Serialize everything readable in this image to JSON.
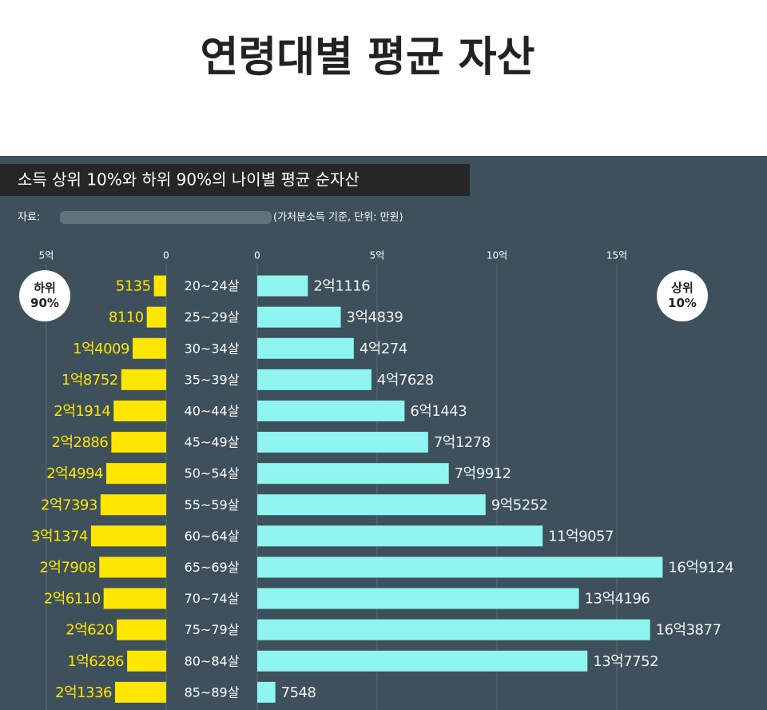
{
  "chart_data": {
    "type": "butterfly_bar",
    "title": "연령대별 평균 자산",
    "subtitle": "소득 상위 10%와 하위 90%의 나이별 평균 순자산",
    "source": "자료:",
    "note": "(가처분소득 기준, 단위: 만원)",
    "categories": [
      "20~24살",
      "25~29살",
      "30~34살",
      "35~39살",
      "40~44살",
      "45~49살",
      "50~54살",
      "55~59살",
      "60~64살",
      "65~69살",
      "70~74살",
      "75~79살",
      "80~84살",
      "85~89살"
    ],
    "series": [
      {
        "name": "하위 90%",
        "color": "#ffe600",
        "side": "left",
        "values": [
          5135,
          8110,
          14009,
          18752,
          21914,
          22886,
          24994,
          27393,
          31374,
          27908,
          26110,
          20620,
          16286,
          21336
        ],
        "value_labels": [
          "5135",
          "8110",
          "1억4009",
          "1억8752",
          "2억1914",
          "2억2886",
          "2억4994",
          "2억7393",
          "3억1374",
          "2억7908",
          "2억6110",
          "2억620",
          "1억6286",
          "2억1336"
        ],
        "xlim": [
          0,
          60000
        ],
        "xticks": [
          {
            "value": 50000,
            "label": "5억"
          },
          0
        ]
      },
      {
        "name": "상위 10%",
        "color": "#8ff5f0",
        "side": "right",
        "values": [
          21116,
          34839,
          40274,
          47628,
          61443,
          71278,
          79912,
          95252,
          119057,
          169124,
          134196,
          163877,
          137752,
          7548
        ],
        "value_labels": [
          "2억1116",
          "3억4839",
          "4억274",
          "4억7628",
          "6억1443",
          "7억1278",
          "7억9912",
          "9억5252",
          "11억9057",
          "16억9124",
          "13억4196",
          "16억3877",
          "13억7752",
          "7548"
        ],
        "xlim": [
          0,
          200000
        ],
        "xticks": [
          0,
          {
            "value": 50000,
            "label": "5억"
          },
          {
            "value": 100000,
            "label": "10억"
          },
          {
            "value": 150000,
            "label": "15억"
          }
        ]
      }
    ],
    "grid": true
  }
}
